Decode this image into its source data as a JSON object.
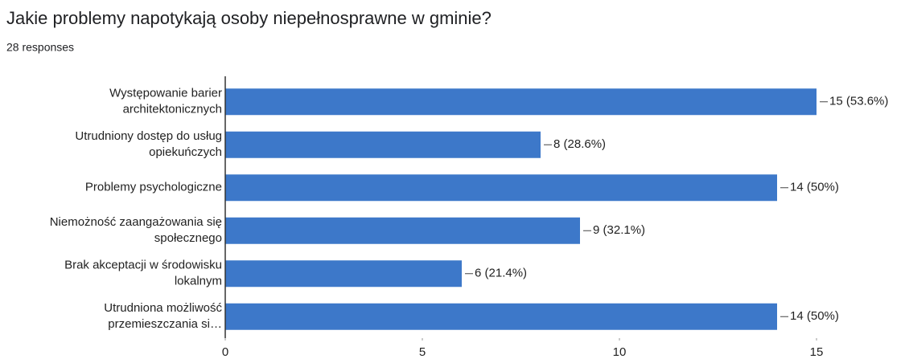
{
  "chart_data": {
    "type": "hbar",
    "title": "Jakie problemy napotykają osoby niepełnosprawne w gminie?",
    "subtitle": "28 responses",
    "categories": [
      [
        "Występowanie barier",
        "architektonicznych"
      ],
      [
        "Utrudniony dostęp do usług",
        "opiekuńczych"
      ],
      [
        "Problemy psychologiczne"
      ],
      [
        "Niemożność zaangażowania się",
        "społecznego"
      ],
      [
        "Brak akceptacji w środowisku",
        "lokalnym"
      ],
      [
        "Utrudniona możliwość",
        "przemieszczania si…"
      ]
    ],
    "values": [
      15,
      8,
      14,
      9,
      6,
      14
    ],
    "value_labels": [
      "15 (53.6%)",
      "8 (28.6%)",
      "14 (50%)",
      "9 (32.1%)",
      "6 (21.4%)",
      "14 (50%)"
    ],
    "color": "#3d78c9",
    "xlim": [
      0,
      15
    ],
    "xticks": [
      0,
      5,
      10,
      15
    ]
  }
}
